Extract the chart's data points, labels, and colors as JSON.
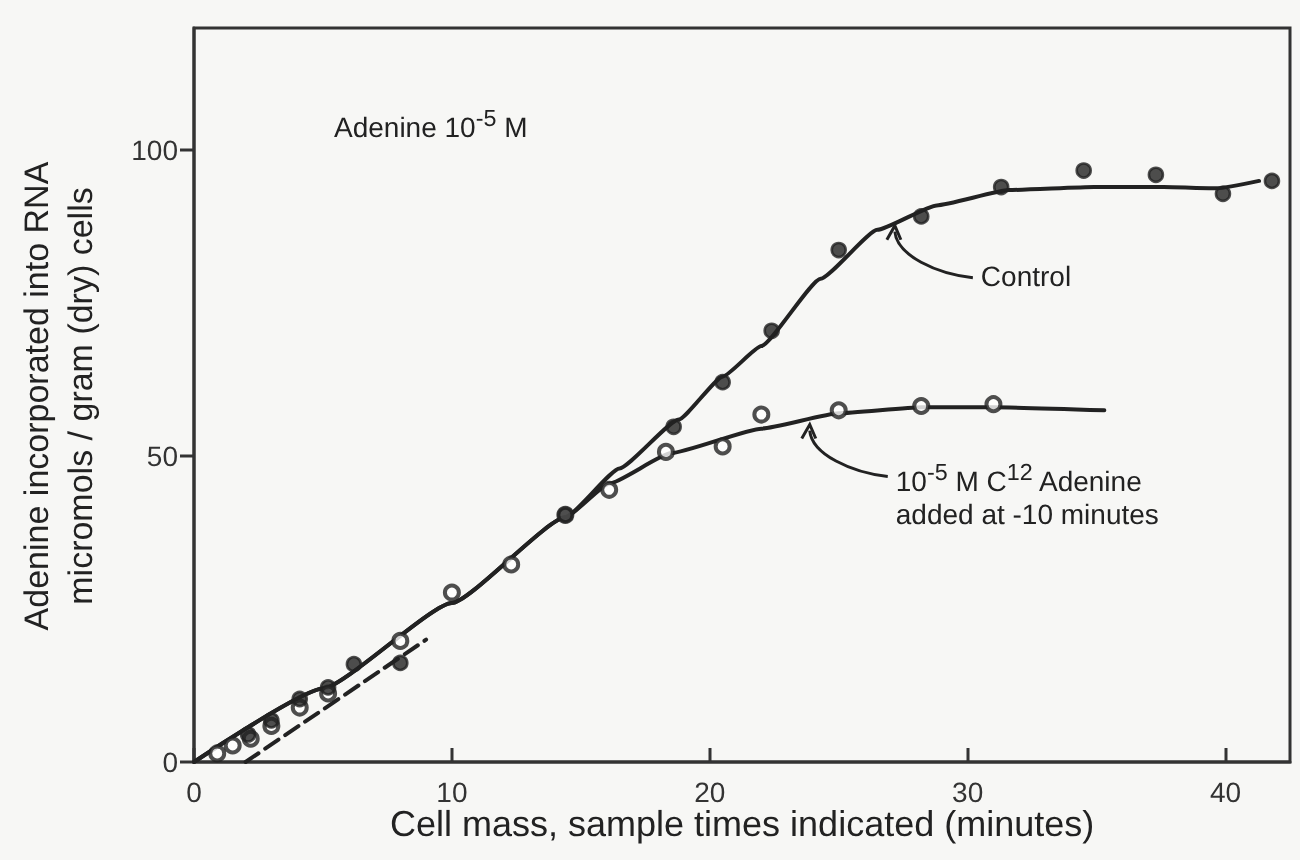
{
  "chart_data": {
    "type": "scatter",
    "xlabel": "Cell mass, sample times indicated (minutes)",
    "ylabel": "Adenine incorporated into RNA\nmicromols / gram (dry) cells",
    "annotations": [
      "Adenine 10$^{-5}$ M",
      {
        "text": "Control",
        "x": 27.1,
        "y": 88
      },
      {
        "text": "10$^{-5}$ M C$^{12}$ Adenine\nadded at -10 minutes",
        "x": 23.8,
        "y": 55.5
      }
    ],
    "series": [
      {
        "marker": "circle",
        "color": "#222222",
        "x": [
          2.1,
          3.0,
          4.1,
          5.2,
          6.2,
          8.0,
          14.4,
          18.6,
          20.5,
          22.4,
          25.0,
          28.2,
          31.3,
          34.5,
          37.3,
          39.9,
          41.8
        ],
        "values": [
          4.5,
          6.8,
          10.3,
          12.2,
          16.0,
          16.2,
          40.4,
          54.8,
          62.1,
          70.5,
          83.7,
          89.2,
          94.0,
          96.7,
          96.0,
          92.9,
          95.0
        ]
      },
      {
        "marker": "emptyCircle",
        "color": "#222222",
        "x": [
          0.9,
          1.5,
          2.2,
          3.0,
          4.1,
          5.2,
          8.0,
          10.0,
          12.3,
          14.4,
          16.1,
          18.3,
          20.5,
          22.0,
          25.0,
          28.2,
          31.0
        ],
        "values": [
          1.4,
          2.7,
          3.8,
          5.9,
          8.9,
          11.2,
          19.8,
          27.7,
          32.3,
          40.4,
          44.5,
          50.7,
          51.6,
          56.8,
          57.5,
          58.2,
          58.5
        ]
      },
      {
        "type": "line",
        "line_style": "solid",
        "color": "#222222",
        "x": [
          0,
          5,
          10,
          14.4,
          16.5,
          18.8,
          20.5,
          22.0,
          24.3,
          26.5,
          28.8,
          31.6,
          34.9,
          37.6,
          39.7,
          41.3
        ],
        "values": [
          0,
          12,
          26,
          40,
          48,
          56,
          63,
          68,
          79,
          87,
          91,
          93.5,
          94,
          94,
          93.8,
          95
        ]
      },
      {
        "type": "line",
        "line_style": "solid",
        "color": "#222222",
        "x": [
          0,
          5,
          10,
          14.4,
          16.1,
          18.5,
          22.0,
          25.0,
          28.2,
          31.0,
          35.3
        ],
        "values": [
          0,
          12,
          26,
          40,
          45.5,
          50.5,
          54.5,
          57,
          58,
          58,
          57.5
        ]
      },
      {
        "type": "line",
        "line_style": "dashed",
        "color": "#222222",
        "x": [
          2.0,
          9.0
        ],
        "values": [
          0,
          20
        ]
      }
    ],
    "xlim": [
      0,
      42.5
    ],
    "ylim": [
      0,
      120
    ],
    "xticks": [
      0,
      10,
      20,
      30,
      40
    ],
    "yticks": [
      0,
      50,
      100
    ],
    "grid": false
  }
}
